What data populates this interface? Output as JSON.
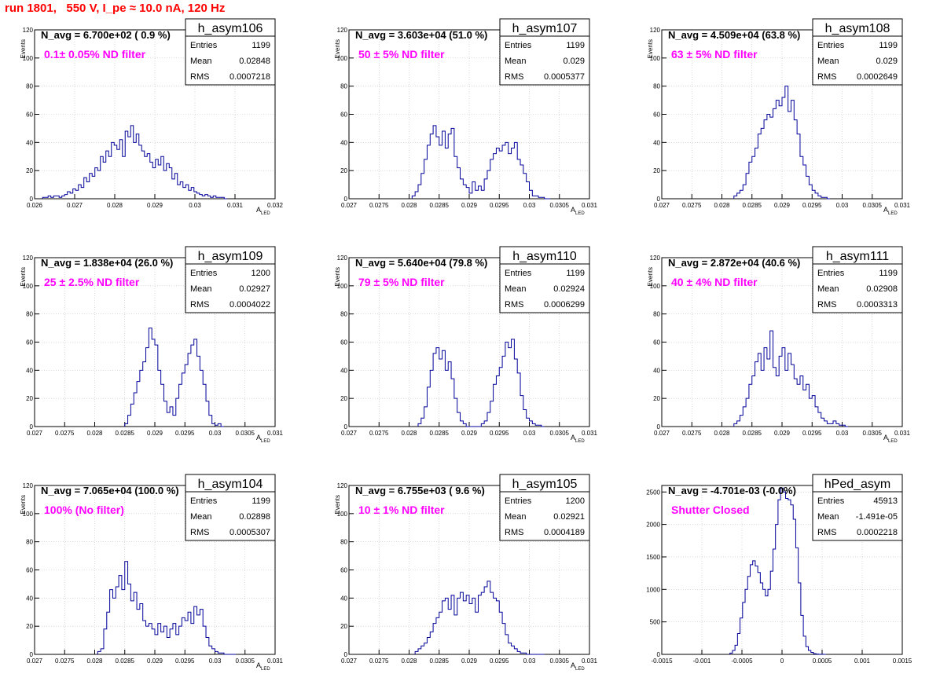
{
  "page": {
    "run_title": "run 1801,   550 V, I_pe ≈ 10.0 nA, 120 Hz",
    "colors": {
      "title": "#ff0000",
      "histogram": "#000099",
      "filter_label": "#ff00ff",
      "grid": "#c0c0c0"
    }
  },
  "chart_data": [
    {
      "type": "bar",
      "name": "h_asym106",
      "navg_text": "N_avg = 6.700e+02 ( 0.9 %)",
      "filter_label": "0.1± 0.05% ND filter",
      "stats": [
        [
          "Entries",
          "1199"
        ],
        [
          "Mean",
          "0.02848"
        ],
        [
          "RMS",
          "0.0007218"
        ]
      ],
      "xlabel": "A_LED",
      "ylabel": "Events",
      "xlim": [
        0.026,
        0.032
      ],
      "ylim": [
        0,
        120
      ],
      "xticks": [
        0.026,
        0.027,
        0.028,
        0.029,
        0.03,
        0.031,
        0.032
      ],
      "xtick_labels": [
        "0.026",
        "0.027",
        "0.028",
        "0.029",
        "0.03",
        "0.031",
        "0.032"
      ],
      "yticks": [
        0,
        20,
        40,
        60,
        80,
        100,
        120
      ],
      "ytick_labels": [
        "0",
        "20",
        "40",
        "60",
        "80",
        "100",
        "120"
      ],
      "bins": {
        "x_start": 0.0262,
        "x_end": 0.0308,
        "values": [
          1,
          1,
          2,
          1,
          2,
          2,
          1,
          2,
          3,
          5,
          4,
          7,
          6,
          10,
          8,
          15,
          12,
          18,
          16,
          22,
          20,
          30,
          26,
          34,
          30,
          40,
          38,
          35,
          42,
          30,
          48,
          44,
          52,
          40,
          46,
          38,
          34,
          30,
          32,
          26,
          22,
          28,
          24,
          30,
          20,
          25,
          22,
          14,
          18,
          10,
          12,
          8,
          10,
          6,
          8,
          5,
          4,
          3,
          2,
          3,
          2,
          1,
          2,
          1,
          1,
          1,
          0
        ]
      }
    },
    {
      "type": "bar",
      "name": "h_asym107",
      "navg_text": "N_avg = 3.603e+04 (51.0 %)",
      "filter_label": "50 ± 5% ND filter",
      "stats": [
        [
          "Entries",
          "1199"
        ],
        [
          "Mean",
          "0.029"
        ],
        [
          "RMS",
          "0.0005377"
        ]
      ],
      "xlabel": "A_LED",
      "ylabel": "Events",
      "xlim": [
        0.027,
        0.031
      ],
      "ylim": [
        0,
        120
      ],
      "xticks": [
        0.027,
        0.0275,
        0.028,
        0.0285,
        0.029,
        0.0295,
        0.03,
        0.0305,
        0.031
      ],
      "xtick_labels": [
        "0.027",
        "0.0275",
        "0.028",
        "0.0285",
        "0.029",
        "0.0295",
        "0.03",
        "0.0305",
        "0.031"
      ],
      "yticks": [
        0,
        20,
        40,
        60,
        80,
        100,
        120
      ],
      "ytick_labels": [
        "0",
        "20",
        "40",
        "60",
        "80",
        "100",
        "120"
      ],
      "bins": {
        "x_start": 0.02805,
        "x_end": 0.03035,
        "values": [
          2,
          5,
          10,
          18,
          28,
          38,
          46,
          52,
          44,
          38,
          48,
          36,
          46,
          50,
          30,
          22,
          14,
          10,
          8,
          4,
          12,
          6,
          9,
          6,
          14,
          20,
          28,
          32,
          36,
          34,
          38,
          40,
          32,
          36,
          40,
          28,
          24,
          18,
          12,
          6,
          2,
          2,
          1,
          1,
          0,
          0
        ]
      }
    },
    {
      "type": "bar",
      "name": "h_asym108",
      "navg_text": "N_avg = 4.509e+04 (63.8 %)",
      "filter_label": "63 ± 5% ND filter",
      "stats": [
        [
          "Entries",
          "1199"
        ],
        [
          "Mean",
          "0.029"
        ],
        [
          "RMS",
          "0.0002649"
        ]
      ],
      "xlabel": "A_LED",
      "ylabel": "Events",
      "xlim": [
        0.027,
        0.031
      ],
      "ylim": [
        0,
        120
      ],
      "xticks": [
        0.027,
        0.0275,
        0.028,
        0.0285,
        0.029,
        0.0295,
        0.03,
        0.0305,
        0.031
      ],
      "xtick_labels": [
        "0.027",
        "0.0275",
        "0.028",
        "0.0285",
        "0.029",
        "0.0295",
        "0.03",
        "0.0305",
        "0.031"
      ],
      "yticks": [
        0,
        20,
        40,
        60,
        80,
        100,
        120
      ],
      "ytick_labels": [
        "0",
        "20",
        "40",
        "60",
        "80",
        "100",
        "120"
      ],
      "bins": {
        "x_start": 0.0282,
        "x_end": 0.0298,
        "values": [
          2,
          4,
          6,
          10,
          18,
          26,
          30,
          36,
          46,
          50,
          56,
          60,
          58,
          64,
          70,
          66,
          72,
          80,
          62,
          70,
          56,
          46,
          30,
          24,
          16,
          10,
          6,
          4,
          2,
          1,
          1,
          0
        ]
      }
    },
    {
      "type": "bar",
      "name": "h_asym109",
      "navg_text": "N_avg = 1.838e+04 (26.0 %)",
      "filter_label": "25 ± 2.5% ND filter",
      "stats": [
        [
          "Entries",
          "1200"
        ],
        [
          "Mean",
          "0.02927"
        ],
        [
          "RMS",
          "0.0004022"
        ]
      ],
      "xlabel": "A_LED",
      "ylabel": "Events",
      "xlim": [
        0.027,
        0.031
      ],
      "ylim": [
        0,
        120
      ],
      "xticks": [
        0.027,
        0.0275,
        0.028,
        0.0285,
        0.029,
        0.0295,
        0.03,
        0.0305,
        0.031
      ],
      "xtick_labels": [
        "0.027",
        "0.0275",
        "0.028",
        "0.0285",
        "0.029",
        "0.0295",
        "0.03",
        "0.0305",
        "0.031"
      ],
      "yticks": [
        0,
        20,
        40,
        60,
        80,
        100,
        120
      ],
      "ytick_labels": [
        "0",
        "20",
        "40",
        "60",
        "80",
        "100",
        "120"
      ],
      "bins": {
        "x_start": 0.0285,
        "x_end": 0.03015,
        "values": [
          2,
          8,
          16,
          24,
          32,
          40,
          46,
          56,
          70,
          62,
          58,
          40,
          30,
          18,
          10,
          14,
          8,
          20,
          30,
          38,
          44,
          52,
          58,
          62,
          50,
          40,
          30,
          18,
          8,
          2,
          1,
          2,
          0
        ]
      }
    },
    {
      "type": "bar",
      "name": "h_asym110",
      "navg_text": "N_avg = 5.640e+04 (79.8 %)",
      "filter_label": "79 ± 5% ND filter",
      "stats": [
        [
          "Entries",
          "1199"
        ],
        [
          "Mean",
          "0.02924"
        ],
        [
          "RMS",
          "0.0006299"
        ]
      ],
      "xlabel": "A_LED",
      "ylabel": "Events",
      "xlim": [
        0.027,
        0.031
      ],
      "ylim": [
        0,
        120
      ],
      "xticks": [
        0.027,
        0.0275,
        0.028,
        0.0285,
        0.029,
        0.0295,
        0.03,
        0.0305,
        0.031
      ],
      "xtick_labels": [
        "0.027",
        "0.0275",
        "0.028",
        "0.0285",
        "0.029",
        "0.0295",
        "0.03",
        "0.0305",
        "0.031"
      ],
      "yticks": [
        0,
        20,
        40,
        60,
        80,
        100,
        120
      ],
      "ytick_labels": [
        "0",
        "20",
        "40",
        "60",
        "80",
        "100",
        "120"
      ],
      "bins": {
        "x_start": 0.02815,
        "x_end": 0.03025,
        "values": [
          2,
          6,
          14,
          28,
          40,
          52,
          56,
          48,
          54,
          40,
          46,
          34,
          20,
          10,
          4,
          2,
          0,
          0,
          0,
          0,
          0,
          2,
          4,
          10,
          18,
          30,
          36,
          42,
          50,
          60,
          56,
          62,
          48,
          38,
          22,
          12,
          6,
          4,
          2,
          1,
          1,
          0
        ]
      }
    },
    {
      "type": "bar",
      "name": "h_asym111",
      "navg_text": "N_avg = 2.872e+04 (40.6 %)",
      "filter_label": "40 ± 4% ND filter",
      "stats": [
        [
          "Entries",
          "1199"
        ],
        [
          "Mean",
          "0.02908"
        ],
        [
          "RMS",
          "0.0003313"
        ]
      ],
      "xlabel": "A_LED",
      "ylabel": "Events",
      "xlim": [
        0.027,
        0.031
      ],
      "ylim": [
        0,
        120
      ],
      "xticks": [
        0.027,
        0.0275,
        0.028,
        0.0285,
        0.029,
        0.0295,
        0.03,
        0.0305,
        0.031
      ],
      "xtick_labels": [
        "0.027",
        "0.0275",
        "0.028",
        "0.0285",
        "0.029",
        "0.0295",
        "0.03",
        "0.0305",
        "0.031"
      ],
      "yticks": [
        0,
        20,
        40,
        60,
        80,
        100,
        120
      ],
      "ytick_labels": [
        "0",
        "20",
        "40",
        "60",
        "80",
        "100",
        "120"
      ],
      "bins": {
        "x_start": 0.0282,
        "x_end": 0.0301,
        "values": [
          2,
          4,
          8,
          14,
          20,
          30,
          36,
          46,
          52,
          40,
          56,
          48,
          68,
          42,
          36,
          50,
          56,
          40,
          52,
          44,
          34,
          30,
          36,
          26,
          30,
          20,
          22,
          14,
          10,
          6,
          4,
          2,
          2,
          4,
          2,
          1,
          1,
          0
        ]
      }
    },
    {
      "type": "bar",
      "name": "h_asym104",
      "navg_text": "N_avg = 7.065e+04 (100.0 %)",
      "filter_label": "100% (No filter)",
      "stats": [
        [
          "Entries",
          "1199"
        ],
        [
          "Mean",
          "0.02898"
        ],
        [
          "RMS",
          "0.0005307"
        ]
      ],
      "xlabel": "A_LED",
      "ylabel": "Events",
      "xlim": [
        0.027,
        0.031
      ],
      "ylim": [
        0,
        120
      ],
      "xticks": [
        0.027,
        0.0275,
        0.028,
        0.0285,
        0.029,
        0.0295,
        0.03,
        0.0305,
        0.031
      ],
      "xtick_labels": [
        "0.027",
        "0.0275",
        "0.028",
        "0.0285",
        "0.029",
        "0.0295",
        "0.03",
        "0.0305",
        "0.031"
      ],
      "yticks": [
        0,
        20,
        40,
        60,
        80,
        100,
        120
      ],
      "ytick_labels": [
        "0",
        "20",
        "40",
        "60",
        "80",
        "100",
        "120"
      ],
      "bins": {
        "x_start": 0.02805,
        "x_end": 0.03035,
        "values": [
          2,
          4,
          18,
          30,
          46,
          40,
          48,
          56,
          46,
          66,
          50,
          38,
          44,
          32,
          36,
          24,
          20,
          22,
          18,
          14,
          22,
          16,
          20,
          12,
          18,
          22,
          14,
          20,
          26,
          24,
          30,
          22,
          34,
          28,
          32,
          20,
          12,
          6,
          4,
          2,
          1,
          1,
          0,
          0,
          0,
          0
        ]
      }
    },
    {
      "type": "bar",
      "name": "h_asym105",
      "navg_text": "N_avg = 6.755e+03 ( 9.6 %)",
      "filter_label": "10 ± 1% ND filter",
      "stats": [
        [
          "Entries",
          "1200"
        ],
        [
          "Mean",
          "0.02921"
        ],
        [
          "RMS",
          "0.0004189"
        ]
      ],
      "xlabel": "A_LED",
      "ylabel": "Events",
      "xlim": [
        0.027,
        0.031
      ],
      "ylim": [
        0,
        120
      ],
      "xticks": [
        0.027,
        0.0275,
        0.028,
        0.0285,
        0.029,
        0.0295,
        0.03,
        0.0305,
        0.031
      ],
      "xtick_labels": [
        "0.027",
        "0.0275",
        "0.028",
        "0.0285",
        "0.029",
        "0.0295",
        "0.03",
        "0.0305",
        "0.031"
      ],
      "yticks": [
        0,
        20,
        40,
        60,
        80,
        100,
        120
      ],
      "ytick_labels": [
        "0",
        "20",
        "40",
        "60",
        "80",
        "100",
        "120"
      ],
      "bins": {
        "x_start": 0.0281,
        "x_end": 0.03025,
        "values": [
          2,
          4,
          6,
          8,
          12,
          16,
          22,
          26,
          30,
          38,
          40,
          32,
          42,
          28,
          40,
          44,
          38,
          42,
          36,
          40,
          30,
          42,
          44,
          48,
          52,
          44,
          40,
          38,
          30,
          22,
          14,
          8,
          6,
          4,
          2,
          1,
          1,
          0,
          0,
          0,
          0,
          0,
          0
        ]
      }
    },
    {
      "type": "bar",
      "name": "hPed_asym",
      "navg_text": "N_avg = -4.701e-03 (-0.0%)",
      "filter_label": "Shutter Closed",
      "stats": [
        [
          "Entries",
          "45913"
        ],
        [
          "Mean",
          "-1.491e-05"
        ],
        [
          "RMS",
          "0.0002218"
        ]
      ],
      "xlabel": "",
      "ylabel": "",
      "xlim": [
        -0.0015,
        0.0015
      ],
      "ylim": [
        0,
        2600
      ],
      "xticks": [
        -0.0015,
        -0.001,
        -0.0005,
        0,
        0.0005,
        0.001,
        0.0015
      ],
      "xtick_labels": [
        "-0.0015",
        "-0.001",
        "-0.0005",
        "0",
        "0.0005",
        "0.001",
        "0.0015"
      ],
      "yticks": [
        0,
        500,
        1000,
        1500,
        2000,
        2500
      ],
      "ytick_labels": [
        "0",
        "500",
        "1000",
        "1500",
        "2000",
        "2500"
      ],
      "bins": {
        "x_start": -0.00065,
        "x_end": 0.00055,
        "values": [
          20,
          60,
          140,
          320,
          560,
          800,
          1000,
          1200,
          1380,
          1440,
          1360,
          1260,
          1100,
          1000,
          900,
          1000,
          1280,
          1620,
          2000,
          2380,
          2560,
          2500,
          2400,
          2380,
          2300,
          2080,
          1640,
          1100,
          600,
          280,
          120,
          60,
          30,
          10,
          4,
          2,
          1,
          0
        ]
      }
    }
  ]
}
